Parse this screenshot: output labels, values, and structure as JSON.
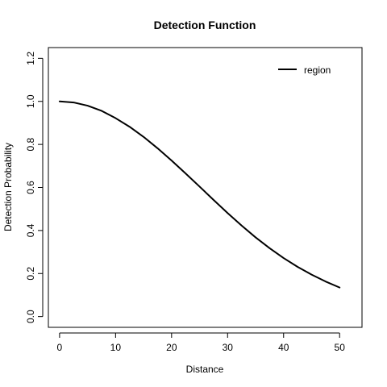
{
  "chart_data": {
    "type": "line",
    "title": "Detection Function",
    "xlabel": "Distance",
    "ylabel": "Detection Probability",
    "xlim": [
      -2,
      54
    ],
    "ylim": [
      -0.05,
      1.25
    ],
    "x_ticks": [
      0,
      10,
      20,
      30,
      40,
      50
    ],
    "x_tick_labels": [
      "0",
      "10",
      "20",
      "30",
      "40",
      "50"
    ],
    "y_ticks": [
      0.0,
      0.2,
      0.4,
      0.6,
      0.8,
      1.0,
      1.2
    ],
    "y_tick_labels": [
      "0.0",
      "0.2",
      "0.4",
      "0.6",
      "0.8",
      "1.0",
      "1.2"
    ],
    "grid": false,
    "legend": {
      "position": "top-right",
      "entries": [
        "region"
      ]
    },
    "series": [
      {
        "name": "region",
        "color": "#000000",
        "x": [
          0,
          2.5,
          5,
          7.5,
          10,
          12.5,
          15,
          17.5,
          20,
          22.5,
          25,
          27.5,
          30,
          32.5,
          35,
          37.5,
          40,
          42.5,
          45,
          47.5,
          50
        ],
        "y": [
          1.0,
          0.995,
          0.98,
          0.956,
          0.922,
          0.882,
          0.835,
          0.782,
          0.725,
          0.665,
          0.604,
          0.542,
          0.481,
          0.423,
          0.368,
          0.318,
          0.272,
          0.231,
          0.195,
          0.163,
          0.135
        ]
      }
    ]
  }
}
